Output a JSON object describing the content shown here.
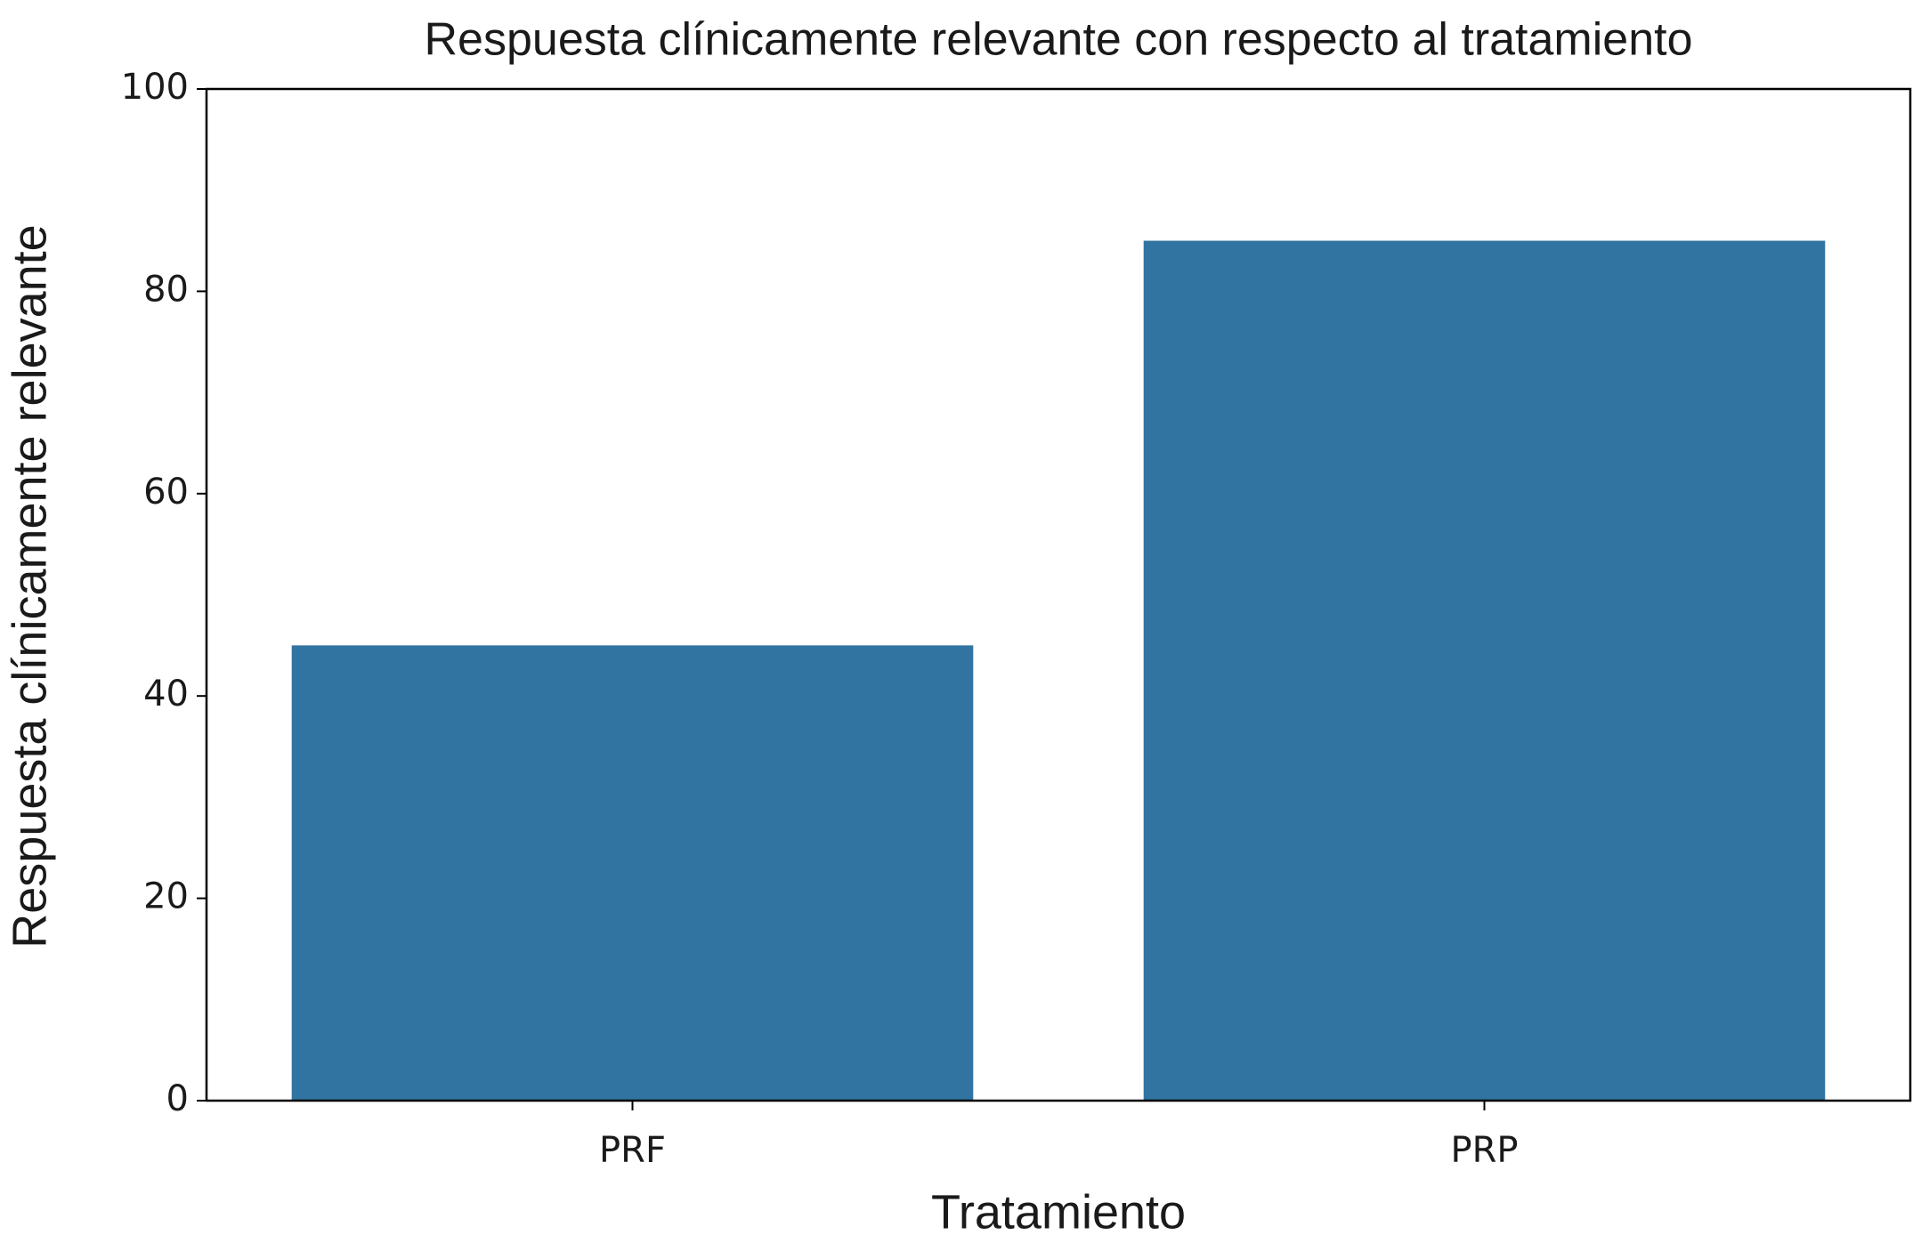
{
  "chart_data": {
    "type": "bar",
    "title": "Respuesta clínicamente relevante con respecto al tratamiento",
    "x_label": "Tratamiento",
    "y_label": "Respuesta clínicamente relevante",
    "categories": [
      "PRF",
      "PRP"
    ],
    "values": [
      45,
      85
    ],
    "color": "#3274a1",
    "ylim": [
      0,
      100
    ],
    "yticks": [
      0,
      20,
      40,
      60,
      80,
      100
    ],
    "grid": false
  }
}
